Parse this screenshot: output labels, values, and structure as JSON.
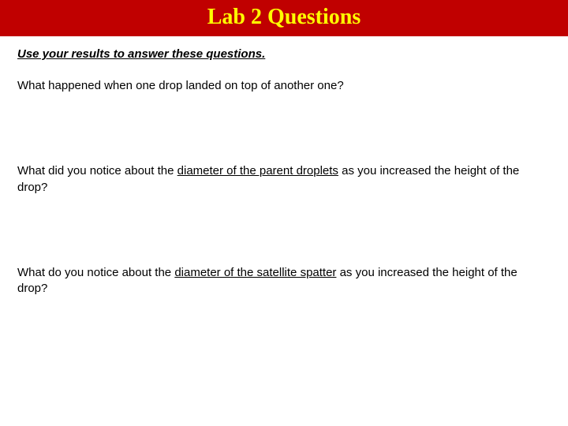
{
  "header": {
    "title": "Lab 2 Questions",
    "background_color": "#c00000",
    "title_color": "#ffff00",
    "title_font": "Times New Roman",
    "title_fontsize": 28,
    "title_weight": "bold"
  },
  "body": {
    "background_color": "#ffffff",
    "text_color": "#000000",
    "font_family": "Arial",
    "fontsize": 15
  },
  "instruction": {
    "text": "Use your results to answer these questions.",
    "bold": true,
    "italic": true,
    "underline": true
  },
  "questions": [
    {
      "pre": "What happened when one drop landed on top of another one?",
      "underlined": "",
      "post": ""
    },
    {
      "pre": "What did you notice about the ",
      "underlined": "diameter of the parent droplets",
      "post": " as you increased the height of the drop?"
    },
    {
      "pre": "What do you notice about the ",
      "underlined": "diameter of the satellite spatter",
      "post": " as you increased the height of the drop?"
    }
  ]
}
